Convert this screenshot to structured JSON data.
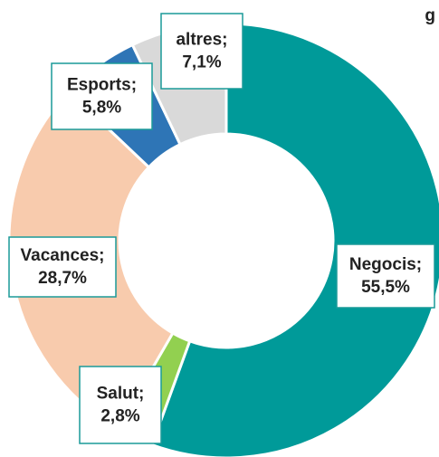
{
  "chart_data": {
    "type": "donut",
    "title": "g",
    "categories": [
      "Negocis;",
      "Salut;",
      "Vacances;",
      "Esports;",
      "altres;"
    ],
    "values": [
      55.5,
      2.8,
      28.7,
      5.8,
      7.1
    ],
    "value_labels": [
      "55,5%",
      "2,8%",
      "28,7%",
      "5,8%",
      "7,1%"
    ],
    "colors": [
      "#009a99",
      "#92d050",
      "#f8cbad",
      "#2e75b6",
      "#d9d9d9"
    ]
  }
}
